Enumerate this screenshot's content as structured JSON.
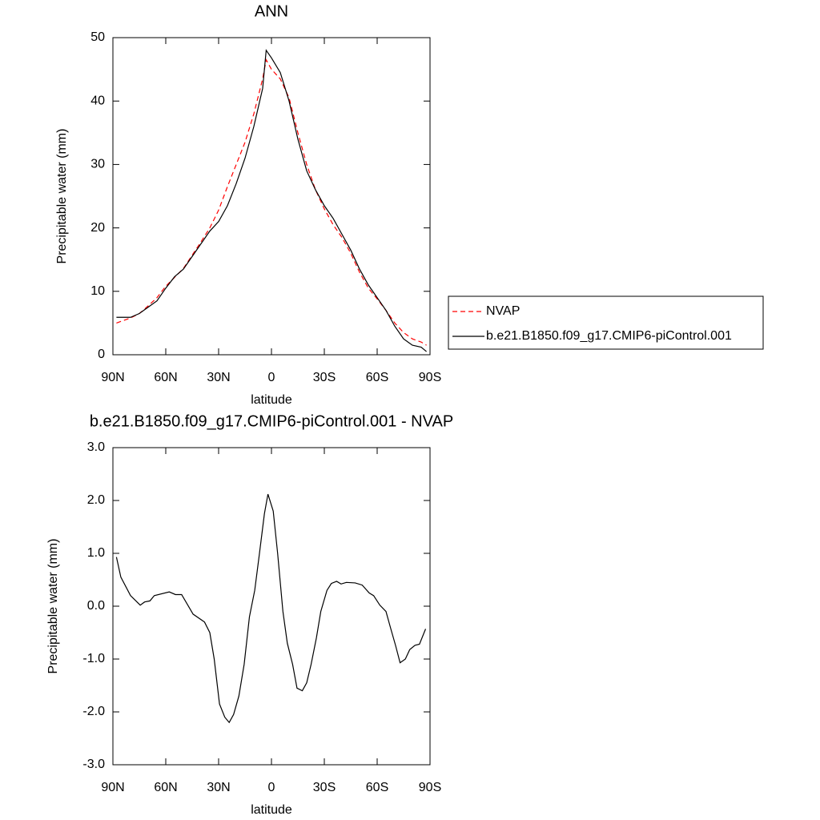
{
  "chart_data": [
    {
      "type": "line",
      "title": "ANN",
      "xlabel": "latitude",
      "ylabel": "Precipitable water (mm)",
      "x": [
        88,
        85,
        80,
        75,
        70,
        65,
        60,
        55,
        50,
        45,
        40,
        35,
        30,
        25,
        20,
        15,
        10,
        5,
        3,
        0,
        -5,
        -10,
        -15,
        -20,
        -25,
        -30,
        -35,
        -40,
        -45,
        -50,
        -55,
        -60,
        -65,
        -70,
        -75,
        -80,
        -85,
        -88
      ],
      "series": [
        {
          "name": "NVAP",
          "color": "#ff0000",
          "dash": true,
          "values": [
            5.0,
            5.3,
            5.8,
            6.5,
            7.7,
            9,
            10.8,
            12.2,
            13.6,
            15.7,
            17.8,
            20,
            22.8,
            26.5,
            30,
            33.5,
            38,
            43.5,
            46.5,
            45,
            43.5,
            40.5,
            35,
            30,
            26,
            23,
            20.5,
            18.5,
            16,
            13,
            10.5,
            8.8,
            7,
            5,
            3.5,
            2.5,
            2,
            1.5
          ]
        },
        {
          "name": "b.e21.B1850.f09_g17.CMIP6-piControl.001",
          "color": "#000000",
          "dash": false,
          "values": [
            5.9,
            5.9,
            5.9,
            6.5,
            7.5,
            8.5,
            10.5,
            12.3,
            13.5,
            15.5,
            17.5,
            19.5,
            21.0,
            23.5,
            27,
            31,
            36,
            42,
            48,
            46.8,
            44.5,
            40,
            34,
            29,
            26,
            23.5,
            21.5,
            19,
            16.5,
            13.5,
            11,
            9,
            7,
            4.5,
            2.5,
            1.5,
            1.2,
            0.5
          ]
        }
      ],
      "xlim": [
        90,
        -90
      ],
      "xticks": [
        {
          "value": 90,
          "label": "90N"
        },
        {
          "value": 60,
          "label": "60N"
        },
        {
          "value": 30,
          "label": "30N"
        },
        0,
        {
          "value": -30,
          "label": "30S"
        },
        {
          "value": -60,
          "label": "60S"
        },
        {
          "value": -90,
          "label": "90S"
        }
      ],
      "ylim": [
        0,
        50
      ],
      "yticks": [
        0,
        10,
        20,
        30,
        40,
        50
      ],
      "legend": "right"
    },
    {
      "type": "line",
      "title": "b.e21.B1850.f09_g17.CMIP6-piControl.001 - NVAP",
      "xlabel": "latitude",
      "ylabel": "Precipitable water (mm)",
      "x": [
        88,
        85.5,
        80,
        74.5,
        72,
        69,
        66.5,
        58,
        54.5,
        51,
        44.5,
        38,
        35,
        32.5,
        29.5,
        26.5,
        24,
        21.5,
        18.5,
        15.5,
        12.5,
        9.5,
        7,
        4,
        2,
        -1,
        -3.5,
        -6.5,
        -9,
        -12,
        -14.5,
        -17.5,
        -20,
        -22.5,
        -25.5,
        -28,
        -31.5,
        -34,
        -37,
        -39.5,
        -42.5,
        -47.5,
        -51.5,
        -55.5,
        -58,
        -61.5,
        -65,
        -67.5,
        -70.5,
        -73,
        -76,
        -78.5,
        -81.5,
        -84,
        -87.5
      ],
      "series": [
        {
          "color": "#000000",
          "dash": false,
          "values": [
            0.93,
            0.55,
            0.2,
            0.02,
            0.08,
            0.1,
            0.2,
            0.27,
            0.22,
            0.22,
            -0.15,
            -0.3,
            -0.5,
            -1.0,
            -1.85,
            -2.1,
            -2.2,
            -2.05,
            -1.7,
            -1.1,
            -0.2,
            0.3,
            0.95,
            1.75,
            2.12,
            1.8,
            1.0,
            -0.1,
            -0.7,
            -1.1,
            -1.55,
            -1.6,
            -1.45,
            -1.1,
            -0.6,
            -0.1,
            0.3,
            0.43,
            0.47,
            0.42,
            0.45,
            0.44,
            0.4,
            0.25,
            0.2,
            0.02,
            -0.1,
            -0.4,
            -0.75,
            -1.07,
            -1.0,
            -0.82,
            -0.74,
            -0.72,
            -0.43
          ]
        }
      ],
      "xlim": [
        90,
        -90
      ],
      "xticks": [
        {
          "value": 90,
          "label": "90N"
        },
        {
          "value": 60,
          "label": "60N"
        },
        {
          "value": 30,
          "label": "30N"
        },
        0,
        {
          "value": -30,
          "label": "30S"
        },
        {
          "value": -60,
          "label": "60S"
        },
        {
          "value": -90,
          "label": "90S"
        }
      ],
      "ylim": [
        -3,
        3
      ],
      "yticks": [
        {
          "value": -3,
          "label": "-3.0"
        },
        {
          "value": -2,
          "label": "-2.0"
        },
        {
          "value": -1,
          "label": "-1.0"
        },
        {
          "value": 0,
          "label": "0.0"
        },
        {
          "value": 1,
          "label": "1.0"
        },
        {
          "value": 2,
          "label": "2.0"
        },
        {
          "value": 3,
          "label": "3.0"
        }
      ]
    }
  ]
}
